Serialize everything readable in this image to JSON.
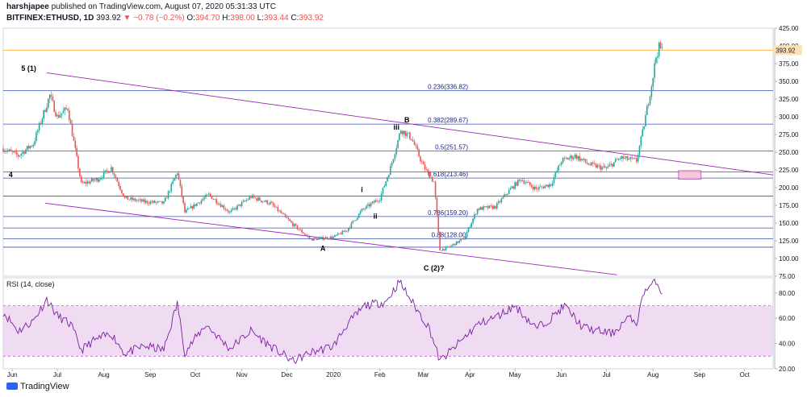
{
  "header": {
    "author": "harshjapee",
    "published": "published on TradingView.com, August 07, 2020 05:31:33 UTC",
    "symbol": "BITFINEX:ETHUSD, 1D",
    "last": "393.92",
    "change": "▼ −0.78 (−0.2%)",
    "o_label": "O:",
    "o_value": "394.70",
    "h_label": "H:",
    "h_value": "398.00",
    "l_label": "L:",
    "l_value": "393.44",
    "c_label": "C:",
    "c_value": "393.92"
  },
  "footer": {
    "brand": "TradingView"
  },
  "colors": {
    "up": "#26a69a",
    "down": "#ef5350",
    "wave": "#9c27b0",
    "fib": "#3f51b5",
    "rsi": "#7b1fa2",
    "rsi_band": "#e1bee7",
    "price_line": "#ffb74d"
  },
  "chart_data": [
    {
      "type": "candlestick",
      "ylim": [
        75,
        425
      ],
      "y_ticks": [
        "425.00",
        "400.00",
        "375.00",
        "350.00",
        "325.00",
        "300.00",
        "275.00",
        "250.00",
        "225.00",
        "200.00",
        "175.00",
        "150.00",
        "125.00",
        "100.00",
        "75.00"
      ],
      "current_price": "393.92",
      "x_ticks": [
        "Jun",
        "Jul",
        "Aug",
        "Sep",
        "Oct",
        "Nov",
        "Dec",
        "2020",
        "Feb",
        "Mar",
        "Apr",
        "May",
        "Jun",
        "Jul",
        "Aug",
        "Sep",
        "Oct"
      ],
      "x_tick_dates": [
        "2019-06-01",
        "2019-07-01",
        "2019-08-01",
        "2019-09-01",
        "2019-10-01",
        "2019-11-01",
        "2019-12-01",
        "2020-01-01",
        "2020-02-01",
        "2020-03-01",
        "2020-04-01",
        "2020-05-01",
        "2020-06-01",
        "2020-07-01",
        "2020-08-01",
        "2020-09-01",
        "2020-10-01"
      ],
      "x_range": [
        "2019-05-26",
        "2020-10-20"
      ],
      "close_path": [
        [
          "2019-05-26",
          255
        ],
        [
          "2019-06-05",
          245
        ],
        [
          "2019-06-15",
          262
        ],
        [
          "2019-06-26",
          330
        ],
        [
          "2019-07-01",
          300
        ],
        [
          "2019-07-08",
          312
        ],
        [
          "2019-07-17",
          205
        ],
        [
          "2019-07-28",
          212
        ],
        [
          "2019-08-06",
          228
        ],
        [
          "2019-08-15",
          185
        ],
        [
          "2019-08-28",
          180
        ],
        [
          "2019-09-10",
          178
        ],
        [
          "2019-09-19",
          222
        ],
        [
          "2019-09-24",
          165
        ],
        [
          "2019-10-10",
          190
        ],
        [
          "2019-10-24",
          165
        ],
        [
          "2019-11-07",
          187
        ],
        [
          "2019-11-20",
          178
        ],
        [
          "2019-12-05",
          148
        ],
        [
          "2019-12-17",
          127
        ],
        [
          "2020-01-01",
          130
        ],
        [
          "2020-01-10",
          140
        ],
        [
          "2020-01-20",
          168
        ],
        [
          "2020-02-01",
          185
        ],
        [
          "2020-02-08",
          228
        ],
        [
          "2020-02-15",
          282
        ],
        [
          "2020-02-22",
          270
        ],
        [
          "2020-03-01",
          230
        ],
        [
          "2020-03-08",
          208
        ],
        [
          "2020-03-12",
          112
        ],
        [
          "2020-03-17",
          115
        ],
        [
          "2020-03-28",
          128
        ],
        [
          "2020-04-06",
          170
        ],
        [
          "2020-04-18",
          173
        ],
        [
          "2020-04-28",
          198
        ],
        [
          "2020-05-05",
          212
        ],
        [
          "2020-05-15",
          198
        ],
        [
          "2020-05-25",
          205
        ],
        [
          "2020-06-01",
          238
        ],
        [
          "2020-06-10",
          245
        ],
        [
          "2020-06-20",
          232
        ],
        [
          "2020-07-01",
          227
        ],
        [
          "2020-07-10",
          242
        ],
        [
          "2020-07-21",
          238
        ],
        [
          "2020-07-25",
          278
        ],
        [
          "2020-07-31",
          345
        ],
        [
          "2020-08-03",
          385
        ],
        [
          "2020-08-05",
          398
        ],
        [
          "2020-08-07",
          394
        ]
      ],
      "horizontal_levels": [
        {
          "value": 393.92,
          "kind": "price"
        },
        {
          "value": 336.82,
          "label": "0.236(336.82)"
        },
        {
          "value": 289.67,
          "label": "0.382(289.67)"
        },
        {
          "value": 251.57,
          "label": "0.5(251.57)"
        },
        {
          "value": 213.46,
          "label": "0.618(213.46)"
        },
        {
          "value": 159.2,
          "label": "0.786(159.20)"
        },
        {
          "value": 128.0,
          "label": "0.88(128.00)"
        },
        {
          "value": 222
        },
        {
          "value": 188
        },
        {
          "value": 143
        },
        {
          "value": 116
        }
      ],
      "channel_lines": [
        {
          "from": [
            "2019-06-24",
            362
          ],
          "to": [
            "2020-10-20",
            218
          ]
        },
        {
          "from": [
            "2019-06-23",
            178
          ],
          "to": [
            "2020-07-08",
            77
          ]
        }
      ],
      "zone": {
        "from": "2020-08-18",
        "to": "2020-09-02",
        "low": 212,
        "high": 224
      },
      "wave_labels": [
        {
          "text": "5 (1)",
          "date": "2019-06-12",
          "price": 365
        },
        {
          "text": "4",
          "date": "2019-05-31",
          "price": 215
        },
        {
          "text": "A",
          "date": "2019-12-25",
          "price": 111
        },
        {
          "text": "i",
          "date": "2020-01-20",
          "price": 194
        },
        {
          "text": "ii",
          "date": "2020-01-29",
          "price": 156
        },
        {
          "text": "iii",
          "date": "2020-02-12",
          "price": 282
        },
        {
          "text": "B",
          "date": "2020-02-19",
          "price": 292
        },
        {
          "text": "C (2)?",
          "date": "2020-03-08",
          "price": 83
        }
      ]
    },
    {
      "type": "line",
      "title": "RSI (14, close)",
      "ylim": [
        20,
        92
      ],
      "y_ticks": [
        "80.00",
        "60.00",
        "40.00",
        "20.00"
      ],
      "band": [
        30,
        70
      ],
      "path": [
        [
          "2019-05-26",
          65
        ],
        [
          "2019-06-05",
          50
        ],
        [
          "2019-06-15",
          58
        ],
        [
          "2019-06-24",
          75
        ],
        [
          "2019-07-01",
          62
        ],
        [
          "2019-07-10",
          55
        ],
        [
          "2019-07-17",
          35
        ],
        [
          "2019-07-25",
          42
        ],
        [
          "2019-08-06",
          48
        ],
        [
          "2019-08-15",
          32
        ],
        [
          "2019-08-28",
          38
        ],
        [
          "2019-09-10",
          35
        ],
        [
          "2019-09-19",
          72
        ],
        [
          "2019-09-24",
          33
        ],
        [
          "2019-10-08",
          55
        ],
        [
          "2019-10-24",
          36
        ],
        [
          "2019-11-07",
          50
        ],
        [
          "2019-11-20",
          38
        ],
        [
          "2019-12-05",
          26
        ],
        [
          "2019-12-17",
          33
        ],
        [
          "2020-01-01",
          38
        ],
        [
          "2020-01-10",
          55
        ],
        [
          "2020-01-22",
          70
        ],
        [
          "2020-02-05",
          73
        ],
        [
          "2020-02-14",
          89
        ],
        [
          "2020-02-25",
          68
        ],
        [
          "2020-03-05",
          52
        ],
        [
          "2020-03-12",
          26
        ],
        [
          "2020-03-20",
          35
        ],
        [
          "2020-04-06",
          55
        ],
        [
          "2020-04-20",
          62
        ],
        [
          "2020-05-01",
          70
        ],
        [
          "2020-05-15",
          52
        ],
        [
          "2020-05-25",
          60
        ],
        [
          "2020-06-03",
          70
        ],
        [
          "2020-06-15",
          53
        ],
        [
          "2020-06-25",
          50
        ],
        [
          "2020-07-05",
          48
        ],
        [
          "2020-07-15",
          60
        ],
        [
          "2020-07-22",
          57
        ],
        [
          "2020-07-25",
          80
        ],
        [
          "2020-07-31",
          86
        ],
        [
          "2020-08-03",
          90
        ],
        [
          "2020-08-07",
          80
        ]
      ]
    }
  ]
}
